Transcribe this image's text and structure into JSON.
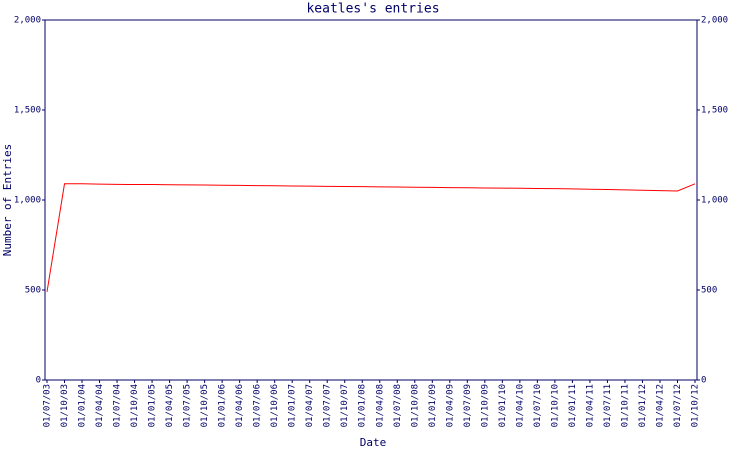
{
  "chart_data": {
    "type": "line",
    "title": "keatles's entries",
    "xlabel": "Date",
    "ylabel": "Number of Entries",
    "categories": [
      "01/07/03",
      "01/10/03",
      "01/01/04",
      "01/04/04",
      "01/07/04",
      "01/10/04",
      "01/01/05",
      "01/04/05",
      "01/07/05",
      "01/10/05",
      "01/01/06",
      "01/04/06",
      "01/07/06",
      "01/10/06",
      "01/01/07",
      "01/04/07",
      "01/07/07",
      "01/10/07",
      "01/01/08",
      "01/04/08",
      "01/07/08",
      "01/10/08",
      "01/01/09",
      "01/04/09",
      "01/07/09",
      "01/10/09",
      "01/01/10",
      "01/04/10",
      "01/07/10",
      "01/10/10",
      "01/01/11",
      "01/04/11",
      "01/07/11",
      "01/10/11",
      "01/01/12",
      "01/04/12",
      "01/07/12",
      "01/10/12"
    ],
    "series": [
      {
        "name": "Entries",
        "color": "#ff0000",
        "values": [
          490,
          1090,
          1090,
          1088,
          1087,
          1086,
          1086,
          1085,
          1084,
          1083,
          1082,
          1081,
          1080,
          1079,
          1078,
          1077,
          1076,
          1075,
          1074,
          1073,
          1072,
          1071,
          1070,
          1069,
          1068,
          1067,
          1066,
          1065,
          1064,
          1063,
          1062,
          1060,
          1058,
          1056,
          1054,
          1052,
          1050,
          1090
        ]
      }
    ],
    "ylim": [
      0,
      2000
    ],
    "yticks": [
      0,
      500,
      {
        "value": 1000,
        "label": "1,000"
      },
      {
        "value": 1500,
        "label": "1,500"
      },
      {
        "value": 2000,
        "label": "2,000"
      }
    ]
  }
}
